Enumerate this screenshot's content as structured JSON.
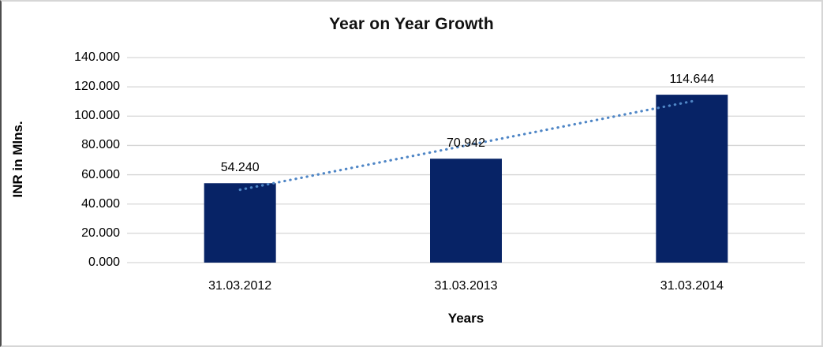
{
  "chart_data": {
    "type": "bar",
    "title": "Year on Year Growth",
    "xlabel": "Years",
    "ylabel": "INR in Mlns.",
    "categories": [
      "31.03.2012",
      "31.03.2013",
      "31.03.2014"
    ],
    "values": [
      54.24,
      70.942,
      114.644
    ],
    "data_labels": [
      "54.240",
      "70.942",
      "114.644"
    ],
    "ylim": [
      0,
      140
    ],
    "ytick_step": 20,
    "ytick_labels": [
      "0.000",
      "20.000",
      "40.000",
      "60.000",
      "80.000",
      "100.000",
      "120.000",
      "140.000"
    ],
    "grid": true,
    "legend_position": "none",
    "trendline": {
      "type": "linear",
      "style": "dotted"
    },
    "colors": {
      "bar": "#072366",
      "trendline": "#4f86c6",
      "gridline": "#d6d6d6",
      "text": "#000000",
      "frame_border": "#d6d6d6",
      "frame_border_left": "#4d4d4d"
    }
  }
}
